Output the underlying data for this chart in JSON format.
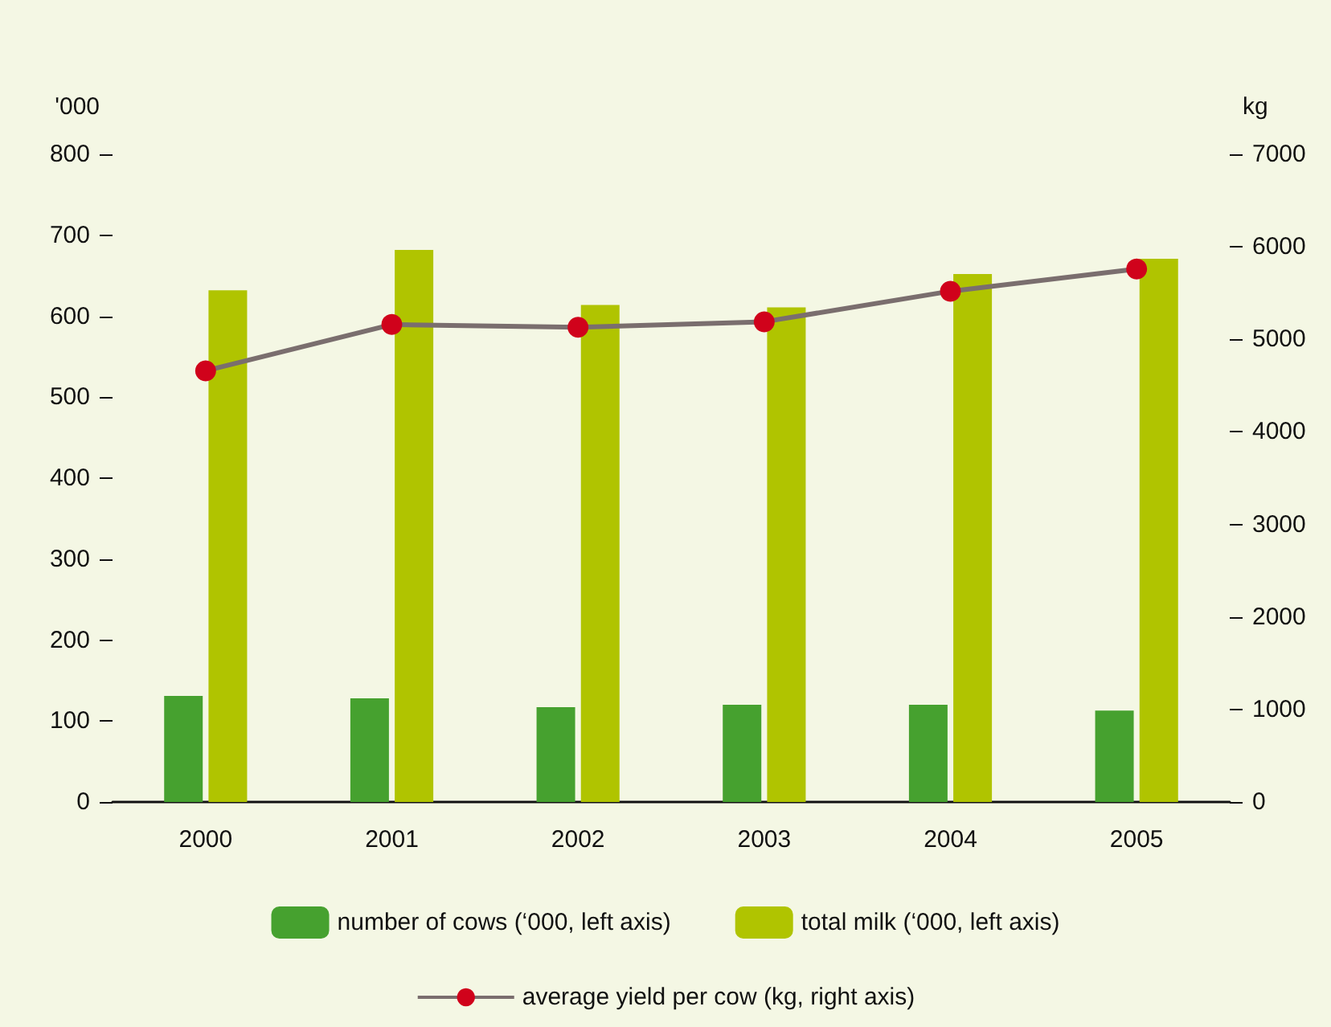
{
  "chart_data": {
    "type": "bar",
    "categories": [
      "2000",
      "2001",
      "2002",
      "2003",
      "2004",
      "2005"
    ],
    "ylabel": "'000",
    "y2label": "kg",
    "ylim": [
      0,
      800
    ],
    "yticks": [
      0,
      100,
      200,
      300,
      400,
      500,
      600,
      700,
      800
    ],
    "y2lim": [
      0,
      7000
    ],
    "y2ticks": [
      0,
      1000,
      2000,
      3000,
      4000,
      5000,
      6000,
      7000
    ],
    "series": [
      {
        "name": "number of cows (‘000, left axis)",
        "color": "#46a12f",
        "values": [
          131,
          128,
          117,
          120,
          120,
          113
        ]
      },
      {
        "name": "total milk (‘000, left axis)",
        "color": "#b0c400",
        "values": [
          632,
          682,
          614,
          611,
          652,
          671
        ]
      },
      {
        "name": "average yield per cow (kg, right axis)",
        "type": "line",
        "axis": "y2",
        "color": "#7a6e6e",
        "marker": "circle",
        "values": [
          4660,
          5160,
          5130,
          5190,
          5520,
          5760
        ]
      }
    ],
    "legend": "bottom",
    "grid": false
  }
}
